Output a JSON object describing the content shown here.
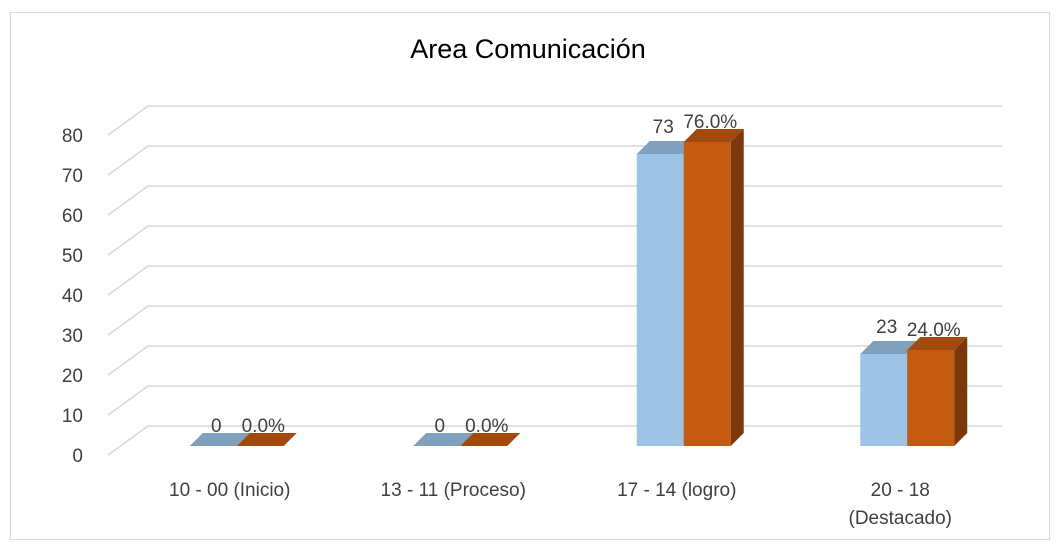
{
  "chart_data": {
    "type": "bar",
    "title": "Area Comunicación",
    "categories": [
      [
        "10 - 00 (Inicio)"
      ],
      [
        "13 - 11  (Proceso)"
      ],
      [
        "17 - 14  (logro)"
      ],
      [
        "20 - 18",
        "(Destacado)"
      ]
    ],
    "series": [
      {
        "values": [
          0,
          0,
          73,
          23
        ],
        "labels": [
          "0",
          "0",
          "73",
          "23"
        ],
        "color": "#9dc3e6"
      },
      {
        "values": [
          0,
          0,
          76,
          24
        ],
        "labels": [
          "0.0%",
          "0.0%",
          "76.0%",
          "24.0%"
        ],
        "color": "#c55a11"
      }
    ],
    "yticks": [
      "0",
      "10",
      "20",
      "30",
      "40",
      "50",
      "60",
      "70",
      "80"
    ],
    "ylim": [
      0,
      80
    ],
    "grid": true,
    "style": "3d-column"
  }
}
